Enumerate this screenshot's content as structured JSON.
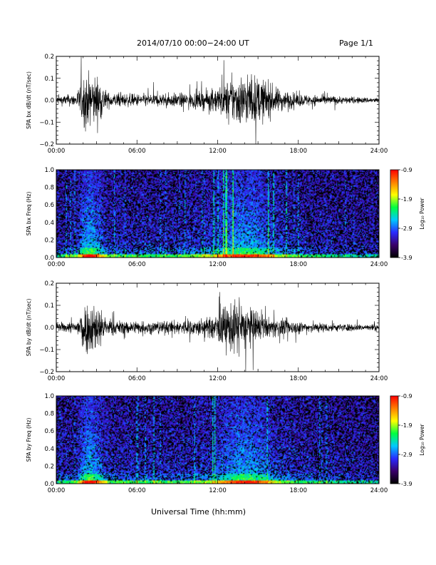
{
  "header": {
    "title": "2014/07/10   00:00−24:00 UT",
    "page": "Page 1/1"
  },
  "x_axis_title": "Universal Time (hh:mm)",
  "x_tick_labels": [
    "00:00",
    "06:00",
    "12:00",
    "18:00",
    "24:00"
  ],
  "colorbar": {
    "label": "Log₁₀ Power",
    "tick_labels": [
      "-0.9",
      "-1.9",
      "-2.9",
      "-3.9"
    ],
    "range": [
      -3.9,
      -0.9
    ],
    "colormap": [
      "#000000",
      "#3a006a",
      "#2a2aff",
      "#00c8ff",
      "#00ff40",
      "#ffff00",
      "#ff8000",
      "#ff0000"
    ]
  },
  "chart_data": [
    {
      "type": "line",
      "panel": "bx-waveform",
      "ylabel": "SPA bx dB/dt (nT/sec)",
      "xlim": [
        0,
        24
      ],
      "ylim": [
        -0.2,
        0.2
      ],
      "y_tick_labels": [
        "0.2",
        "0.1",
        "0.0",
        "−0.1",
        "−0.2"
      ],
      "x_unit": "hours UT",
      "envelope_profile": {
        "hours": [
          0,
          1.5,
          2.0,
          2.4,
          2.8,
          3.2,
          3.8,
          5.5,
          8,
          10,
          11.5,
          12.5,
          13.5,
          14.5,
          15.3,
          16.5,
          18,
          21,
          24
        ],
        "amplitude": [
          0.035,
          0.05,
          0.2,
          0.2,
          0.2,
          0.18,
          0.06,
          0.05,
          0.05,
          0.06,
          0.08,
          0.14,
          0.2,
          0.2,
          0.17,
          0.09,
          0.05,
          0.03,
          0.02
        ]
      }
    },
    {
      "type": "heatmap",
      "panel": "bx-spectrogram",
      "ylabel": "SPA bx Freq (Hz)",
      "xlim": [
        0,
        24
      ],
      "ylim": [
        0,
        1.0
      ],
      "y_tick_labels": [
        "1.0",
        "0.8",
        "0.6",
        "0.4",
        "0.2",
        "0.0"
      ],
      "activity_profile": {
        "hours": [
          0,
          1.5,
          2.0,
          2.5,
          3.0,
          3.8,
          5.5,
          8,
          10,
          11.5,
          12.5,
          13.5,
          14.5,
          15.3,
          16.5,
          18,
          21,
          24
        ],
        "intensity": [
          0.2,
          0.35,
          0.85,
          1.0,
          0.8,
          0.35,
          0.3,
          0.3,
          0.35,
          0.45,
          0.7,
          0.9,
          0.9,
          0.75,
          0.45,
          0.3,
          0.2,
          0.15
        ]
      }
    },
    {
      "type": "line",
      "panel": "by-waveform",
      "ylabel": "SPA by dB/dt (nT/sec)",
      "xlim": [
        0,
        24
      ],
      "ylim": [
        -0.2,
        0.2
      ],
      "y_tick_labels": [
        "0.2",
        "0.1",
        "0.0",
        "−0.1",
        "−0.2"
      ],
      "x_unit": "hours UT",
      "envelope_profile": {
        "hours": [
          0,
          1.5,
          2.0,
          2.4,
          2.8,
          3.2,
          3.8,
          5.5,
          8,
          10,
          11.5,
          12.3,
          13.0,
          13.8,
          14.6,
          15.5,
          16.5,
          18,
          21,
          24
        ],
        "amplitude": [
          0.03,
          0.05,
          0.2,
          0.2,
          0.2,
          0.17,
          0.06,
          0.05,
          0.05,
          0.06,
          0.08,
          0.15,
          0.2,
          0.2,
          0.14,
          0.08,
          0.07,
          0.05,
          0.03,
          0.025
        ]
      }
    },
    {
      "type": "heatmap",
      "panel": "by-spectrogram",
      "ylabel": "SPA by Freq (Hz)",
      "xlim": [
        0,
        24
      ],
      "ylim": [
        0,
        1.0
      ],
      "y_tick_labels": [
        "1.0",
        "0.8",
        "0.6",
        "0.4",
        "0.2",
        "0.0"
      ],
      "activity_profile": {
        "hours": [
          0,
          1.5,
          2.0,
          2.5,
          3.0,
          3.8,
          5.5,
          8,
          10,
          11.5,
          12.5,
          13.5,
          14.5,
          15.3,
          16.5,
          18,
          21,
          24
        ],
        "intensity": [
          0.2,
          0.35,
          0.85,
          1.0,
          0.8,
          0.35,
          0.3,
          0.3,
          0.35,
          0.45,
          0.7,
          0.9,
          0.9,
          0.75,
          0.45,
          0.3,
          0.2,
          0.15
        ]
      }
    }
  ]
}
